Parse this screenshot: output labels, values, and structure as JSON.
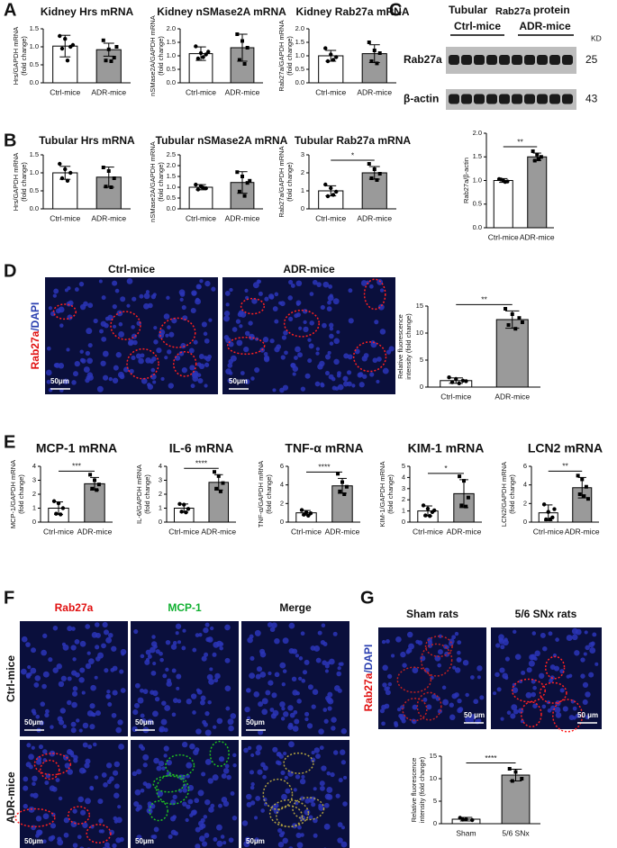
{
  "panel_letters": [
    "A",
    "B",
    "C",
    "D",
    "E",
    "F",
    "G"
  ],
  "chart_data": [
    {
      "type": "bar",
      "title": "Kidney Hrs mRNA",
      "ylabel": [
        "Hrs/GAPDH mRNA",
        "(fold change)"
      ],
      "categories": [
        "Ctrl-mice",
        "ADR-mice"
      ],
      "values": [
        1.02,
        0.92
      ],
      "errors": [
        0.3,
        0.18
      ],
      "points": [
        [
          1.3,
          1.22,
          1.0,
          0.95,
          0.62,
          1.05
        ],
        [
          1.18,
          0.93,
          0.7,
          0.62,
          0.6,
          1.0
        ]
      ],
      "colors": [
        "#ffffff",
        "#9a9a9a"
      ],
      "ylim": [
        0,
        1.5
      ],
      "yticks": [
        {
          "value": 0,
          "label": "0.0"
        },
        0.5,
        {
          "value": 1,
          "label": "1.0"
        },
        1.5
      ]
    },
    {
      "type": "bar",
      "title": "Kidney nSMase2A mRNA",
      "ylabel": [
        "nSMase2A/GAPDH mRNA",
        "(fold change)"
      ],
      "categories": [
        "Ctrl-mice",
        "ADR-mice"
      ],
      "values": [
        1.08,
        1.3
      ],
      "errors": [
        0.25,
        0.5
      ],
      "points": [
        [
          1.35,
          1.1,
          1.05,
          0.9,
          0.95,
          1.15
        ],
        [
          1.8,
          1.55,
          1.3,
          0.85,
          0.7
        ]
      ],
      "colors": [
        "#ffffff",
        "#9a9a9a"
      ],
      "ylim": [
        0,
        2
      ],
      "yticks": [
        {
          "value": 0,
          "label": "0.0"
        },
        0.5,
        {
          "value": 1,
          "label": "1.0"
        },
        1.5,
        {
          "value": 2,
          "label": "2.0"
        }
      ]
    },
    {
      "type": "bar",
      "title": "Kidney Rab27a mRNA",
      "ylabel": [
        "Rab27a/GAPDH mRNA",
        "(fold change)"
      ],
      "categories": [
        "Ctrl-mice",
        "ADR-mice"
      ],
      "values": [
        1.0,
        1.08
      ],
      "errors": [
        0.2,
        0.33
      ],
      "points": [
        [
          1.28,
          1.05,
          0.95,
          0.8,
          0.85
        ],
        [
          1.5,
          1.2,
          1.1,
          0.8,
          0.72
        ]
      ],
      "colors": [
        "#ffffff",
        "#9a9a9a"
      ],
      "ylim": [
        0,
        2
      ],
      "yticks": [
        {
          "value": 0,
          "label": "0.0"
        },
        0.5,
        {
          "value": 1,
          "label": "1.0"
        },
        1.5,
        {
          "value": 2,
          "label": "2.0"
        }
      ]
    },
    {
      "type": "bar",
      "title": "Tubular Hrs mRNA",
      "ylabel": [
        "Hrs/GAPDH mRNA",
        "(fold change)"
      ],
      "categories": [
        "Ctrl-mice",
        "ADR-mice"
      ],
      "values": [
        1.0,
        0.88
      ],
      "errors": [
        0.18,
        0.28
      ],
      "points": [
        [
          1.25,
          1.1,
          1.0,
          0.85,
          0.78
        ],
        [
          1.15,
          1.05,
          0.85,
          0.62,
          0.6
        ]
      ],
      "colors": [
        "#ffffff",
        "#9a9a9a"
      ],
      "ylim": [
        0,
        1.5
      ],
      "yticks": [
        {
          "value": 0,
          "label": "0.0"
        },
        0.5,
        {
          "value": 1,
          "label": "1.0"
        },
        1.5
      ]
    },
    {
      "type": "bar",
      "title": "Tubular nSMase2A mRNA",
      "ylabel": [
        "nSMase2A/GAPDH mRNA",
        "(fold change)"
      ],
      "categories": [
        "Ctrl-mice",
        "ADR-mice"
      ],
      "values": [
        1.0,
        1.22
      ],
      "errors": [
        0.12,
        0.5
      ],
      "points": [
        [
          1.12,
          1.05,
          0.95,
          0.9,
          0.98
        ],
        [
          1.7,
          1.5,
          1.2,
          0.8,
          0.6,
          1.3
        ]
      ],
      "colors": [
        "#ffffff",
        "#9a9a9a"
      ],
      "ylim": [
        0,
        2.5
      ],
      "yticks": [
        {
          "value": 0,
          "label": "0.0"
        },
        0.5,
        {
          "value": 1,
          "label": "1.0"
        },
        1.5,
        {
          "value": 2,
          "label": "2.0"
        },
        2.5
      ]
    },
    {
      "type": "bar",
      "title": "Tubular Rab27a mRNA",
      "ylabel": [
        "Rab27a/GAPDH mRNA",
        "(fold change)"
      ],
      "categories": [
        "Ctrl-mice",
        "ADR-mice"
      ],
      "values": [
        1.0,
        2.0
      ],
      "errors": [
        0.28,
        0.35
      ],
      "points": [
        [
          1.35,
          1.15,
          0.95,
          0.7,
          0.78
        ],
        [
          2.5,
          2.2,
          1.95,
          1.7,
          1.6
        ]
      ],
      "colors": [
        "#ffffff",
        "#9a9a9a"
      ],
      "ylim": [
        0,
        3
      ],
      "yticks": [
        0,
        1,
        2,
        3
      ],
      "significance": "*"
    },
    {
      "type": "bar",
      "title": "",
      "ylabel": [
        "Rab27a/β-actin"
      ],
      "categories": [
        "Ctrl-mice",
        "ADR-mice"
      ],
      "values": [
        1.0,
        1.5
      ],
      "errors": [
        0.04,
        0.08
      ],
      "points": [
        [
          1.03,
          1.0,
          0.98,
          1.02,
          0.97
        ],
        [
          1.62,
          1.55,
          1.5,
          1.42,
          1.45
        ]
      ],
      "colors": [
        "#ffffff",
        "#9a9a9a"
      ],
      "ylim": [
        0,
        2
      ],
      "yticks": [
        {
          "value": 0,
          "label": "0.0"
        },
        0.5,
        {
          "value": 1,
          "label": "1.0"
        },
        1.5,
        {
          "value": 2,
          "label": "2.0"
        }
      ],
      "significance": "**"
    },
    {
      "type": "bar",
      "title": "",
      "ylabel": [
        "Relative fluorescence",
        "intensity (fold change)"
      ],
      "categories": [
        "Ctrl-mice",
        "ADR-mice"
      ],
      "values": [
        1.2,
        12.5
      ],
      "errors": [
        0.5,
        1.6
      ],
      "points": [
        [
          1.8,
          1.5,
          1.2,
          0.9,
          0.7,
          1.1
        ],
        [
          14.5,
          13.5,
          12.8,
          11.5,
          10.8,
          12.0
        ]
      ],
      "colors": [
        "#ffffff",
        "#9a9a9a"
      ],
      "ylim": [
        0,
        15
      ],
      "yticks": [
        0,
        5,
        10,
        15
      ],
      "significance": "**"
    },
    {
      "type": "bar",
      "title": "MCP-1 mRNA",
      "ylabel": [
        "MCP-1/GAPDH mRNA",
        "(fold change)"
      ],
      "categories": [
        "Ctrl-mice",
        "ADR-mice"
      ],
      "values": [
        1.0,
        2.75
      ],
      "errors": [
        0.45,
        0.45
      ],
      "points": [
        [
          1.5,
          1.35,
          1.0,
          0.6,
          0.55
        ],
        [
          3.4,
          3.0,
          2.7,
          2.4,
          2.3
        ]
      ],
      "colors": [
        "#ffffff",
        "#9a9a9a"
      ],
      "ylim": [
        0,
        4
      ],
      "yticks": [
        0,
        1,
        2,
        3,
        4
      ],
      "significance": "***"
    },
    {
      "type": "bar",
      "title": "IL-6 mRNA",
      "ylabel": [
        "IL-6/GAPDH mRNA",
        "(fold change)"
      ],
      "categories": [
        "Ctrl-mice",
        "ADR-mice"
      ],
      "values": [
        1.0,
        2.85
      ],
      "errors": [
        0.3,
        0.55
      ],
      "points": [
        [
          1.3,
          1.25,
          0.95,
          0.75,
          0.7
        ],
        [
          3.6,
          3.3,
          2.8,
          2.4,
          2.2
        ]
      ],
      "colors": [
        "#ffffff",
        "#9a9a9a"
      ],
      "ylim": [
        0,
        4
      ],
      "yticks": [
        0,
        1,
        2,
        3,
        4
      ],
      "significance": "****"
    },
    {
      "type": "bar",
      "title": "TNF-α mRNA",
      "ylabel": [
        "TNF-α/GAPDH mRNA",
        "(fold change)"
      ],
      "categories": [
        "Ctrl-mice",
        "ADR-mice"
      ],
      "values": [
        1.0,
        3.9
      ],
      "errors": [
        0.25,
        0.8
      ],
      "points": [
        [
          1.3,
          1.05,
          0.95,
          0.8,
          0.7
        ],
        [
          5.2,
          4.3,
          3.8,
          3.3,
          3.0
        ]
      ],
      "colors": [
        "#ffffff",
        "#9a9a9a"
      ],
      "ylim": [
        0,
        6
      ],
      "yticks": [
        0,
        2,
        4,
        6
      ],
      "significance": "****"
    },
    {
      "type": "bar",
      "title": "KIM-1 mRNA",
      "ylabel": [
        "KIM-1/GAPDH mRNA",
        "(fold change)"
      ],
      "categories": [
        "Ctrl-mice",
        "ADR-mice"
      ],
      "values": [
        1.0,
        2.55
      ],
      "errors": [
        0.45,
        1.25
      ],
      "points": [
        [
          1.5,
          1.2,
          0.9,
          0.6,
          0.55,
          1.05
        ],
        [
          4.1,
          3.7,
          2.2,
          1.5,
          1.4
        ]
      ],
      "colors": [
        "#ffffff",
        "#9a9a9a"
      ],
      "ylim": [
        0,
        5
      ],
      "yticks": [
        0,
        1,
        2,
        3,
        4,
        5
      ],
      "significance": "*"
    },
    {
      "type": "bar",
      "title": "LCN2 mRNA",
      "ylabel": [
        "LCN2/GAPDH mRNA",
        "(fold change)"
      ],
      "categories": [
        "Ctrl-mice",
        "ADR-mice"
      ],
      "values": [
        1.0,
        3.7
      ],
      "errors": [
        0.85,
        1.1
      ],
      "points": [
        [
          1.9,
          1.1,
          0.5,
          0.3,
          0.3,
          1.4
        ],
        [
          5.0,
          4.6,
          3.8,
          3.0,
          2.8,
          2.5
        ]
      ],
      "colors": [
        "#ffffff",
        "#9a9a9a"
      ],
      "ylim": [
        0,
        6
      ],
      "yticks": [
        0,
        2,
        4,
        6
      ],
      "significance": "**"
    },
    {
      "type": "bar",
      "title": "",
      "ylabel": [
        "Relative fluorescence",
        "intensity (fold change)"
      ],
      "categories": [
        "Sham",
        "5/6 SNx"
      ],
      "values": [
        1.0,
        10.8
      ],
      "errors": [
        0.4,
        1.3
      ],
      "points": [
        [
          1.3,
          1.0,
          0.8,
          0.9
        ],
        [
          12.2,
          11.5,
          10.0,
          9.5
        ]
      ],
      "colors": [
        "#ffffff",
        "#9a9a9a"
      ],
      "ylim": [
        0,
        15
      ],
      "yticks": [
        0,
        5,
        10,
        15
      ],
      "significance": "****"
    }
  ],
  "blot": {
    "title": [
      "Tubular",
      "Rab27a",
      "protein"
    ],
    "groups": [
      "Ctrl-mice",
      "ADR-mice"
    ],
    "unit": "KD",
    "rows": [
      {
        "label": "Rab27a",
        "kd": "25"
      },
      {
        "label": "β-actin",
        "kd": "43"
      }
    ]
  },
  "panel_d_images": {
    "columns": [
      "Ctrl-mice",
      "ADR-mice"
    ],
    "stain": [
      "Rab27a",
      "/DAPI"
    ],
    "scale": "50μm"
  },
  "panel_f_images": {
    "columns": [
      "Rab27a",
      "MCP-1",
      "Merge"
    ],
    "rows": [
      "Ctrl-mice",
      "ADR-mice"
    ],
    "scale": "50μm"
  },
  "panel_g_images": {
    "columns": [
      "Sham rats",
      "5/6 SNx rats"
    ],
    "stain": [
      "Rab27a",
      "/DAPI"
    ],
    "scale": "50 μm"
  }
}
